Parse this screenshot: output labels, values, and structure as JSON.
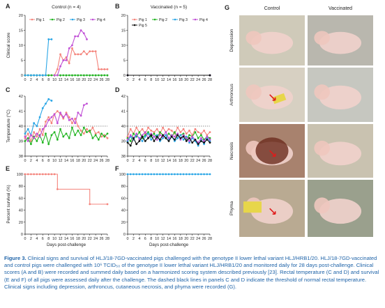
{
  "panels": {
    "A": {
      "label": "A",
      "title": "Control (n = 4)",
      "ylabel": "Clinical score"
    },
    "B": {
      "label": "B",
      "title": "Vaccinated (n = 5)"
    },
    "C": {
      "label": "C",
      "ylabel": "Temperature (°C)"
    },
    "D": {
      "label": "D"
    },
    "E": {
      "label": "E",
      "ylabel": "Percent survival (%)",
      "xlabel": "Days post-challenge"
    },
    "F": {
      "label": "F",
      "xlabel": "Days post-challenge"
    },
    "G": {
      "label": "G",
      "col_headers": [
        "Control",
        "Vaccinated"
      ],
      "row_labels": [
        "Depression",
        "Arthroncus",
        "Necrosis",
        "Phyma"
      ]
    }
  },
  "colors": {
    "pig1": "#f4847c",
    "pig2": "#22b522",
    "pig3": "#2aa6e6",
    "pig4": "#c04fd6",
    "pig5": "#111111",
    "survival_control": "#f4847c",
    "survival_vacc": "#2aa6e6"
  },
  "chart_data": [
    {
      "id": "A",
      "type": "line",
      "title": "Control (n = 4)",
      "ylabel": "Clinical score",
      "x_ticks": [
        0,
        2,
        4,
        6,
        8,
        10,
        12,
        14,
        16,
        18,
        20,
        22,
        24,
        26,
        28
      ],
      "ylim": [
        0,
        20
      ],
      "y_ticks": [
        0,
        5,
        10,
        15,
        20
      ],
      "legend": "top",
      "series": [
        {
          "name": "Pig 1",
          "x": [
            0,
            1,
            2,
            3,
            4,
            5,
            6,
            7,
            8,
            9,
            10,
            11,
            12,
            13,
            14,
            15,
            16,
            17,
            18,
            19,
            20,
            21,
            22,
            23,
            24,
            25,
            26,
            27,
            28
          ],
          "y": [
            0,
            0,
            0,
            0,
            0,
            0,
            0,
            0,
            0,
            0,
            0,
            2,
            7,
            5,
            6,
            4,
            9,
            7,
            7,
            7,
            8,
            7,
            8,
            8,
            8,
            2,
            2,
            2,
            2
          ]
        },
        {
          "name": "Pig 2",
          "x": [
            0,
            1,
            2,
            3,
            4,
            5,
            6,
            7,
            8,
            9,
            10,
            11,
            12,
            13,
            14,
            15,
            16,
            17,
            18,
            19,
            20,
            21,
            22,
            23,
            24,
            25,
            26,
            27,
            28
          ],
          "y": [
            0,
            0,
            0,
            0,
            0,
            0,
            0,
            0,
            0,
            0,
            0,
            0,
            0,
            0,
            0,
            0,
            0,
            0,
            0,
            0,
            0,
            0,
            0,
            0,
            0,
            0,
            0,
            0,
            0
          ]
        },
        {
          "name": "Pig 3",
          "x": [
            0,
            1,
            2,
            3,
            4,
            5,
            6,
            7,
            8,
            9
          ],
          "y": [
            0,
            0,
            0,
            0,
            0,
            0,
            0,
            0,
            12,
            12
          ]
        },
        {
          "name": "Pig 4",
          "x": [
            10,
            11,
            12,
            13,
            14,
            15,
            16,
            17,
            18,
            19,
            20,
            21
          ],
          "y": [
            0,
            0,
            3,
            5,
            5,
            9,
            10,
            13,
            13,
            15,
            14,
            12
          ]
        }
      ]
    },
    {
      "id": "B",
      "type": "line",
      "title": "Vaccinated (n = 5)",
      "x_ticks": [
        0,
        2,
        4,
        6,
        8,
        10,
        12,
        14,
        16,
        18,
        20,
        22,
        24,
        26,
        28
      ],
      "ylim": [
        0,
        20
      ],
      "y_ticks": [
        0,
        5,
        10,
        15,
        20
      ],
      "legend": "top",
      "series": [
        {
          "name": "Pig 1",
          "x": [
            0,
            28
          ],
          "y": [
            0,
            0
          ]
        },
        {
          "name": "Pig 2",
          "x": [
            0,
            28
          ],
          "y": [
            0,
            0
          ]
        },
        {
          "name": "Pig 3",
          "x": [
            0,
            28
          ],
          "y": [
            0,
            0
          ]
        },
        {
          "name": "Pig 4",
          "x": [
            0,
            28
          ],
          "y": [
            0,
            0
          ]
        },
        {
          "name": "Pig 5",
          "x": [
            0,
            28
          ],
          "y": [
            0,
            0
          ]
        }
      ]
    },
    {
      "id": "C",
      "type": "line",
      "ylabel": "Temperature (°C)",
      "x_ticks": [
        0,
        2,
        4,
        6,
        8,
        10,
        12,
        14,
        16,
        18,
        20,
        22,
        24,
        26,
        28
      ],
      "ylim": [
        38,
        42
      ],
      "y_ticks": [
        38,
        39,
        40,
        41,
        42
      ],
      "threshold": 40,
      "series": [
        {
          "name": "Pig 1",
          "x": [
            0,
            1,
            2,
            3,
            4,
            5,
            6,
            7,
            8,
            9,
            10,
            11,
            12,
            13,
            14,
            15,
            16,
            17,
            18,
            19,
            20,
            21,
            22,
            23,
            24,
            25,
            26,
            27,
            28
          ],
          "y": [
            39.2,
            39.5,
            39.0,
            39.6,
            39.3,
            39.8,
            39.4,
            40.3,
            40.6,
            40.2,
            40.8,
            41.0,
            40.8,
            40.5,
            40.9,
            40.6,
            40.2,
            40.5,
            40.0,
            39.7,
            39.5,
            39.8,
            39.6,
            39.9,
            39.5,
            39.6,
            39.3,
            39.4,
            39.2
          ]
        },
        {
          "name": "Pig 2",
          "x": [
            0,
            1,
            2,
            3,
            4,
            5,
            6,
            7,
            8,
            9,
            10,
            11,
            12,
            13,
            14,
            15,
            16,
            17,
            18,
            19,
            20,
            21,
            22,
            23,
            24,
            25,
            26,
            27,
            28
          ],
          "y": [
            39.0,
            39.2,
            38.8,
            39.3,
            39.0,
            39.4,
            38.9,
            39.5,
            38.8,
            39.4,
            39.6,
            39.1,
            39.8,
            39.3,
            39.5,
            39.2,
            39.9,
            39.4,
            39.7,
            39.4,
            39.9,
            39.6,
            39.7,
            39.2,
            39.4,
            39.1,
            39.5,
            39.3,
            39.5
          ]
        },
        {
          "name": "Pig 3",
          "x": [
            0,
            1,
            2,
            3,
            4,
            5,
            6,
            7,
            8,
            9
          ],
          "y": [
            39.5,
            39.8,
            39.4,
            40.2,
            40.0,
            40.6,
            41.2,
            41.5,
            41.8,
            41.7
          ]
        },
        {
          "name": "Pig 4",
          "x": [
            0,
            1,
            2,
            3,
            4,
            5,
            6,
            7,
            8,
            9,
            10,
            11,
            12,
            13,
            14,
            15,
            16,
            17,
            18,
            19,
            20,
            21
          ],
          "y": [
            39.3,
            39.0,
            39.4,
            39.2,
            39.5,
            39.3,
            39.8,
            40.0,
            40.4,
            40.6,
            40.8,
            40.2,
            40.9,
            40.6,
            40.8,
            40.4,
            40.5,
            40.2,
            40.9,
            40.7,
            41.4,
            41.5
          ]
        }
      ]
    },
    {
      "id": "D",
      "type": "line",
      "x_ticks": [
        0,
        2,
        4,
        6,
        8,
        10,
        12,
        14,
        16,
        18,
        20,
        22,
        24,
        26,
        28
      ],
      "ylim": [
        38,
        42
      ],
      "y_ticks": [
        38,
        39,
        40,
        41,
        42
      ],
      "threshold": 40,
      "series": [
        {
          "name": "Pig 1",
          "x": [
            0,
            1,
            2,
            3,
            4,
            5,
            6,
            7,
            8,
            9,
            10,
            11,
            12,
            13,
            14,
            15,
            16,
            17,
            18,
            19,
            20,
            21,
            22,
            23,
            24,
            25,
            26,
            27,
            28
          ],
          "y": [
            39.3,
            39.8,
            39.5,
            39.9,
            39.6,
            39.8,
            39.5,
            39.9,
            39.7,
            39.6,
            39.8,
            39.5,
            39.9,
            39.6,
            39.8,
            39.7,
            39.5,
            39.9,
            39.6,
            39.8,
            39.5,
            39.7,
            39.4,
            39.8,
            39.6,
            39.5,
            39.7,
            39.4,
            39.6
          ]
        },
        {
          "name": "Pig 2",
          "x": [
            0,
            1,
            2,
            3,
            4,
            5,
            6,
            7,
            8,
            9,
            10,
            11,
            12,
            13,
            14,
            15,
            16,
            17,
            18,
            19,
            20,
            21,
            22,
            23,
            24,
            25,
            26,
            27,
            28
          ],
          "y": [
            39.2,
            39.0,
            39.5,
            39.3,
            39.6,
            39.2,
            39.4,
            39.6,
            39.3,
            39.5,
            39.2,
            39.6,
            39.4,
            39.2,
            39.5,
            39.3,
            39.6,
            39.2,
            39.4,
            39.5,
            39.1,
            39.4,
            39.3,
            39.6,
            39.2,
            39.4,
            39.1,
            39.3,
            39.2
          ]
        },
        {
          "name": "Pig 3",
          "x": [
            0,
            1,
            2,
            3,
            4,
            5,
            6,
            7,
            8,
            9,
            10,
            11,
            12,
            13,
            14,
            15,
            16,
            17,
            18,
            19,
            20,
            21,
            22,
            23,
            24,
            25,
            26,
            27,
            28
          ],
          "y": [
            39.0,
            39.3,
            39.1,
            39.4,
            39.2,
            39.0,
            39.3,
            39.5,
            39.1,
            39.3,
            39.4,
            39.0,
            39.2,
            39.4,
            39.1,
            39.3,
            39.0,
            39.2,
            39.4,
            39.1,
            39.3,
            38.9,
            39.2,
            39.0,
            38.7,
            39.1,
            38.8,
            39.2,
            39.0
          ]
        },
        {
          "name": "Pig 4",
          "x": [
            0,
            1,
            2,
            3,
            4,
            5,
            6,
            7,
            8,
            9,
            10,
            11,
            12,
            13,
            14,
            15,
            16,
            17,
            18,
            19,
            20,
            21,
            22,
            23,
            24,
            25,
            26,
            27,
            28
          ],
          "y": [
            39.1,
            39.4,
            39.2,
            39.5,
            39.1,
            39.4,
            39.6,
            39.2,
            39.5,
            39.3,
            39.1,
            39.4,
            39.3,
            39.6,
            39.2,
            39.4,
            39.3,
            39.5,
            39.1,
            39.4,
            39.2,
            39.0,
            39.3,
            39.1,
            38.9,
            39.2,
            39.0,
            39.3,
            39.1
          ]
        },
        {
          "name": "Pig 5",
          "x": [
            0,
            1,
            2,
            3,
            4,
            5,
            6,
            7,
            8,
            9,
            10,
            11,
            12,
            13,
            14,
            15,
            16,
            17,
            18,
            19,
            20,
            21,
            22,
            23,
            24,
            25,
            26,
            27,
            28
          ],
          "y": [
            38.9,
            38.7,
            39.2,
            38.8,
            39.0,
            39.3,
            39.0,
            39.2,
            39.4,
            39.0,
            39.3,
            39.1,
            39.4,
            39.2,
            39.0,
            39.3,
            39.1,
            39.4,
            39.2,
            39.3,
            39.0,
            39.2,
            38.9,
            39.1,
            38.8,
            39.0,
            38.9,
            39.1,
            38.9
          ]
        }
      ]
    },
    {
      "id": "E",
      "type": "line",
      "ylabel": "Percent survival (%)",
      "xlabel": "Days post-challenge",
      "x_ticks": [
        0,
        2,
        4,
        6,
        8,
        10,
        12,
        14,
        16,
        18,
        20,
        22,
        24,
        26,
        28
      ],
      "ylim": [
        0,
        100
      ],
      "y_ticks": [
        0,
        20,
        40,
        60,
        80,
        100
      ],
      "step": true,
      "series": [
        {
          "name": "Control",
          "x": [
            0,
            1,
            2,
            3,
            4,
            5,
            6,
            7,
            8,
            9,
            10,
            11,
            22,
            28
          ],
          "y": [
            100,
            100,
            100,
            100,
            100,
            100,
            100,
            100,
            100,
            100,
            100,
            75,
            50,
            50
          ]
        }
      ]
    },
    {
      "id": "F",
      "type": "line",
      "xlabel": "Days post-challenge",
      "x_ticks": [
        0,
        2,
        4,
        6,
        8,
        10,
        12,
        14,
        16,
        18,
        20,
        22,
        24,
        26,
        28
      ],
      "ylim": [
        0,
        100
      ],
      "y_ticks": [
        0,
        20,
        40,
        60,
        80,
        100
      ],
      "series": [
        {
          "name": "Vaccinated",
          "x": [
            0,
            1,
            2,
            3,
            4,
            5,
            6,
            7,
            8,
            9,
            10,
            11,
            12,
            13,
            14,
            15,
            16,
            17,
            18,
            19,
            20,
            21,
            22,
            23,
            24,
            25,
            26,
            27,
            28
          ],
          "y": [
            100,
            100,
            100,
            100,
            100,
            100,
            100,
            100,
            100,
            100,
            100,
            100,
            100,
            100,
            100,
            100,
            100,
            100,
            100,
            100,
            100,
            100,
            100,
            100,
            100,
            100,
            100,
            100,
            100
          ]
        }
      ]
    }
  ],
  "caption": {
    "label": "Figure 3.",
    "text": "Clinical signs and survival of HLJ/18-7GD-vaccinated pigs challenged with the genotype II lower lethal variant HLJ/HRB1/20. HLJ/18-7GD-vaccinated and control pigs were challenged with 10⁶ TCID₅₀ of the genotype II lower lethal variant HLJ/HRB1/20 and monitored daily for 28 days post-challenge. Clinical scores (A and B) were recorded and summed daily based on a harmonized scoring system described previously [23]. Rectal temperature (C and D) and survival (E and F) of all pigs were assessed daily after the challenge. The dashed black lines in panels C and D indicate the threshold of normal rectal temperature. Clinical signs including depression, arthroncus, cutaneous necrosis, and phyma were recorded (G)."
  }
}
